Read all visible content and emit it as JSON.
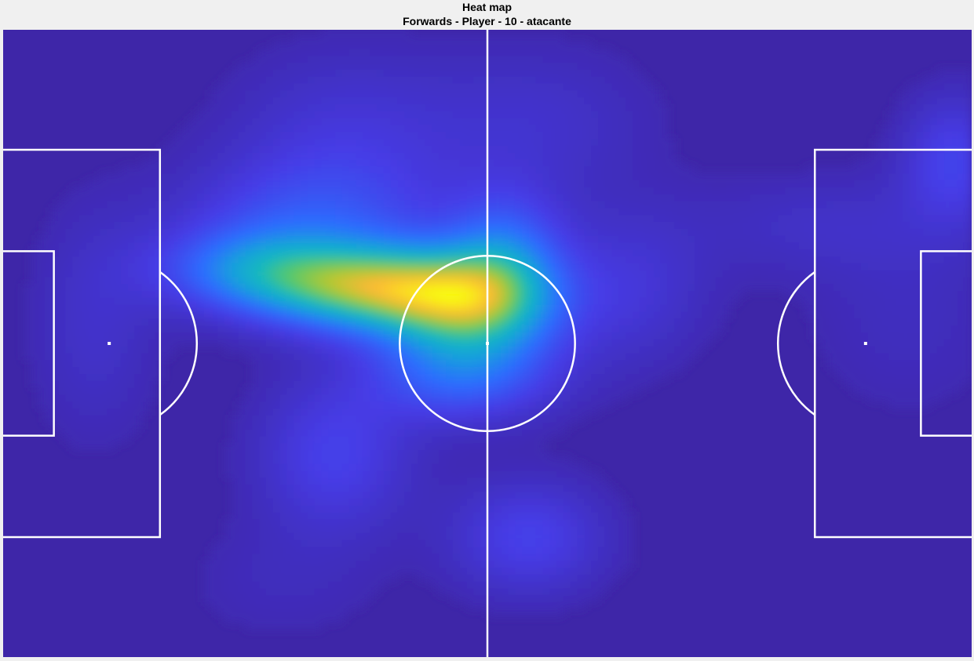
{
  "chart_data": {
    "type": "heatmap",
    "title": "Heat map",
    "subtitle": "Forwards - Player - 10 - atacante",
    "xlabel": "",
    "ylabel": "",
    "colormap": "parula",
    "colors": {
      "low": "#3e26a8",
      "mid_low": "#2d6cff",
      "mid": "#18b6c8",
      "mid_high": "#9fd33a",
      "high": "#f9fb0e",
      "background": "#f0f0f0",
      "lines": "#ffffff"
    },
    "xlim": [
      0,
      105
    ],
    "ylim": [
      0,
      68
    ],
    "grid": false,
    "legend": "none",
    "hotspots": [
      {
        "x": 40.0,
        "y": 40.0,
        "intensity": 1.0,
        "sx": 8.5,
        "sy": 3.2
      },
      {
        "x": 50.5,
        "y": 38.0,
        "intensity": 0.85,
        "sx": 6.5,
        "sy": 4.0
      },
      {
        "x": 27.0,
        "y": 42.0,
        "intensity": 0.45,
        "sx": 7.0,
        "sy": 3.0
      },
      {
        "x": 54.5,
        "y": 43.5,
        "intensity": 0.45,
        "sx": 4.5,
        "sy": 5.0
      },
      {
        "x": 50.0,
        "y": 30.5,
        "intensity": 0.45,
        "sx": 7.0,
        "sy": 3.5
      },
      {
        "x": 33.0,
        "y": 46.5,
        "intensity": 0.35,
        "sx": 10.0,
        "sy": 5.0
      },
      {
        "x": 36.0,
        "y": 22.0,
        "intensity": 0.3,
        "sx": 6.0,
        "sy": 6.0
      },
      {
        "x": 57.0,
        "y": 13.0,
        "intensity": 0.3,
        "sx": 6.0,
        "sy": 4.5
      },
      {
        "x": 68.0,
        "y": 40.0,
        "intensity": 0.2,
        "sx": 6.0,
        "sy": 6.0
      },
      {
        "x": 103.0,
        "y": 54.0,
        "intensity": 0.3,
        "sx": 4.0,
        "sy": 5.0
      },
      {
        "x": 88.0,
        "y": 47.0,
        "intensity": 0.12,
        "sx": 10.0,
        "sy": 4.0
      },
      {
        "x": 98.0,
        "y": 37.0,
        "intensity": 0.1,
        "sx": 8.0,
        "sy": 8.0
      },
      {
        "x": 10.0,
        "y": 36.0,
        "intensity": 0.15,
        "sx": 5.0,
        "sy": 9.0
      },
      {
        "x": 30.0,
        "y": 8.0,
        "intensity": 0.08,
        "sx": 8.0,
        "sy": 5.0
      },
      {
        "x": 37.0,
        "y": 56.0,
        "intensity": 0.2,
        "sx": 9.0,
        "sy": 7.0
      },
      {
        "x": 58.0,
        "y": 58.0,
        "intensity": 0.15,
        "sx": 9.0,
        "sy": 6.0
      }
    ],
    "pitch": {
      "length": 105,
      "width": 68,
      "penalty_area_depth": 17,
      "penalty_area_width": 42,
      "goal_area_depth": 5.5,
      "goal_area_width": 20,
      "penalty_spot_distance": 11.5,
      "center_circle_radius": 9.5,
      "penalty_arc_radius": 9.5
    }
  }
}
